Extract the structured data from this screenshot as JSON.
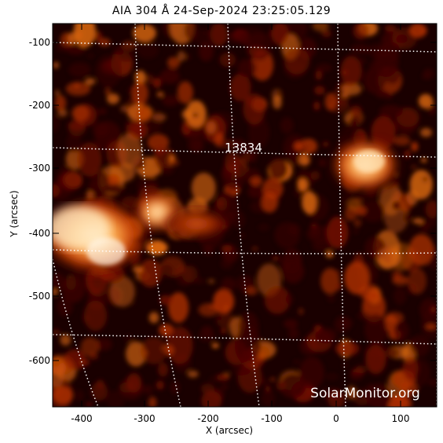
{
  "title": "AIA 304 Å 24-Sep-2024 23:25:05.129",
  "axes": {
    "x_label": "X (arcsec)",
    "y_label": "Y (arcsec)",
    "x_ticks": [
      "-400",
      "-300",
      "-200",
      "-100",
      "0",
      "100"
    ],
    "y_ticks": [
      "-100",
      "-200",
      "-300",
      "-400",
      "-500",
      "-600"
    ]
  },
  "image": {
    "active_region_label": "13834",
    "watermark": "SolarMonitor.org",
    "colormap": [
      "#000000",
      "#3a0000",
      "#7a1400",
      "#b03000",
      "#e06a10",
      "#ffb060",
      "#fff0d0"
    ]
  }
}
